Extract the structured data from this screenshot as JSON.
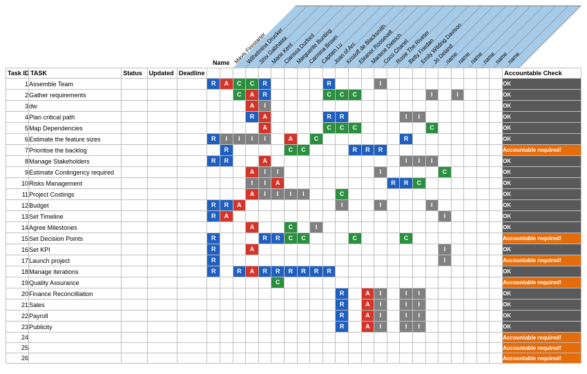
{
  "colors": {
    "header_bg": "#a6cbe8",
    "R": "#1f5fbf",
    "A": "#d4342a",
    "C": "#2a8f3f",
    "I": "#808080",
    "acc_ok_bg": "#595959",
    "acc_req_bg": "#e46c0a",
    "acc_text": "#ffffff",
    "border": "#bfbfbf"
  },
  "corner_label": "Name",
  "columns": {
    "task_id": "Task ID",
    "task": "TASK",
    "status": "Status",
    "updated": "Updated",
    "deadline": "Deadline",
    "accountable": "Accountable Check"
  },
  "people": [
    "Mavis Firestarter",
    "Wilhelmina Drucker",
    "Shiv Gabhasta",
    "Marie Kent",
    "Clarissa Durford",
    "Marguerite Bunting",
    "Carmina Brown",
    "Captain Lu",
    "Joan of Arc",
    "Kristoff de Blacksmith",
    "Eleanor Roosevelt",
    "Marlene Dietrich",
    "Coco Chanel",
    "Rosie The Riveter",
    "Betty Friedan",
    "Emily Wilding Davison",
    "Jo Deland",
    "name",
    "name",
    "name",
    "name",
    "name",
    "name"
  ],
  "acc_labels": {
    "ok": "OK",
    "req": "Accountable required!"
  },
  "rows": [
    {
      "id": 1,
      "task": "Assemble Team",
      "cells": {
        "0": "R",
        "1": "A",
        "2": "C",
        "3": "C",
        "4": "R",
        "9": "R",
        "13": "I"
      },
      "acc": "ok"
    },
    {
      "id": 2,
      "task": "Gather requirements",
      "cells": {
        "2": "C",
        "3": "A",
        "4": "R",
        "9": "C",
        "10": "C",
        "11": "C",
        "17": "I",
        "19": "I"
      },
      "acc": "ok"
    },
    {
      "id": 3,
      "task": "dw",
      "cells": {
        "3": "A",
        "4": "I"
      },
      "acc": "ok"
    },
    {
      "id": 4,
      "task": "Plan critical path",
      "cells": {
        "3": "R",
        "4": "A",
        "9": "R",
        "10": "R",
        "15": "I",
        "16": "I"
      },
      "acc": "ok"
    },
    {
      "id": 5,
      "task": "Map Dependencies",
      "cells": {
        "4": "A",
        "9": "C",
        "10": "C",
        "11": "C",
        "17": "C"
      },
      "acc": "ok"
    },
    {
      "id": 6,
      "task": "Estimate the feature sizes",
      "cells": {
        "0": "R",
        "1": "I",
        "2": "I",
        "3": "I",
        "4": "I",
        "6": "A",
        "8": "C",
        "15": "R"
      },
      "acc": "ok"
    },
    {
      "id": 7,
      "task": "Prioritise the backlog",
      "cells": {
        "1": "R",
        "6": "C",
        "7": "C",
        "11": "R",
        "12": "R",
        "13": "R"
      },
      "acc": "req"
    },
    {
      "id": 8,
      "task": "Manage Stakeholders",
      "cells": {
        "0": "R",
        "1": "R",
        "4": "A",
        "15": "I",
        "16": "I",
        "17": "I"
      },
      "acc": "ok"
    },
    {
      "id": 9,
      "task": "Estimate Contingency required",
      "cells": {
        "3": "A",
        "4": "I",
        "5": "I",
        "13": "I",
        "18": "C"
      },
      "acc": "ok"
    },
    {
      "id": 10,
      "task": "Risks Management",
      "cells": {
        "3": "I",
        "4": "I",
        "5": "A",
        "14": "R",
        "15": "R",
        "16": "C"
      },
      "acc": "ok"
    },
    {
      "id": 11,
      "task": "Project Costings",
      "cells": {
        "3": "A",
        "4": "I",
        "5": "I",
        "6": "I",
        "7": "I",
        "10": "C"
      },
      "acc": "ok"
    },
    {
      "id": 12,
      "task": "Budget",
      "cells": {
        "0": "R",
        "1": "R",
        "2": "A",
        "10": "I",
        "13": "I",
        "17": "I"
      },
      "acc": "ok"
    },
    {
      "id": 13,
      "task": "Set Timeline",
      "cells": {
        "0": "R",
        "1": "A",
        "18": "I"
      },
      "acc": "ok"
    },
    {
      "id": 14,
      "task": "Agree Milestones",
      "cells": {
        "3": "A",
        "6": "C",
        "8": "I"
      },
      "acc": "ok"
    },
    {
      "id": 15,
      "task": "Set Decision Points",
      "cells": {
        "0": "R",
        "4": "R",
        "5": "R",
        "6": "C",
        "7": "C",
        "11": "C",
        "15": "C"
      },
      "acc": "req"
    },
    {
      "id": 16,
      "task": "Set KPI",
      "cells": {
        "0": "R",
        "3": "A",
        "18": "I"
      },
      "acc": "ok"
    },
    {
      "id": 17,
      "task": "Launch project",
      "cells": {
        "0": "R",
        "18": "I"
      },
      "acc": "req"
    },
    {
      "id": 18,
      "task": "Manage iterations",
      "cells": {
        "0": "R",
        "2": "R",
        "3": "A",
        "4": "R",
        "5": "R",
        "6": "R",
        "7": "R",
        "8": "R",
        "9": "R"
      },
      "acc": "ok"
    },
    {
      "id": 19,
      "task": "Quality Assurance",
      "cells": {
        "5": "C"
      },
      "acc": "req"
    },
    {
      "id": 20,
      "task": "Finance Reconcilliation",
      "cells": {
        "10": "R",
        "12": "A",
        "13": "I",
        "15": "I",
        "16": "I"
      },
      "acc": "ok"
    },
    {
      "id": 21,
      "task": "Sales",
      "cells": {
        "10": "R",
        "12": "A",
        "13": "I",
        "15": "I",
        "16": "I"
      },
      "acc": "ok"
    },
    {
      "id": 22,
      "task": "Payroll",
      "cells": {
        "10": "R",
        "12": "A",
        "13": "I",
        "15": "I",
        "16": "I"
      },
      "acc": "ok"
    },
    {
      "id": 23,
      "task": "Publicity",
      "cells": {
        "10": "R",
        "12": "A",
        "13": "I",
        "15": "I",
        "16": "I"
      },
      "acc": "ok"
    },
    {
      "id": 24,
      "task": "",
      "cells": {},
      "acc": "req"
    },
    {
      "id": 25,
      "task": "",
      "cells": {},
      "acc": "req"
    },
    {
      "id": 26,
      "task": "",
      "cells": {},
      "acc": "req"
    }
  ]
}
